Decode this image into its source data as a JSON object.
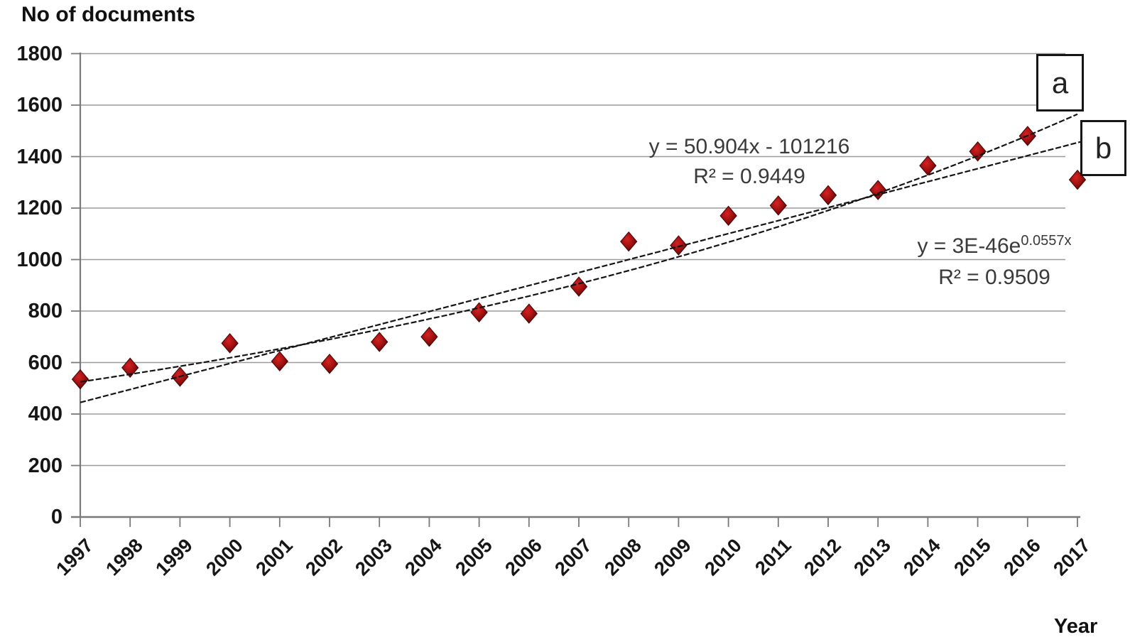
{
  "title": "No of documents",
  "xlabel": "Year",
  "chart_data": {
    "type": "scatter",
    "title": "No of documents",
    "xlabel": "Year",
    "ylabel": "No of documents",
    "x": [
      1997,
      1998,
      1999,
      2000,
      2001,
      2002,
      2003,
      2004,
      2005,
      2006,
      2007,
      2008,
      2009,
      2010,
      2011,
      2012,
      2013,
      2014,
      2015,
      2016,
      2017
    ],
    "values": [
      535,
      580,
      545,
      675,
      605,
      595,
      680,
      700,
      795,
      790,
      895,
      1070,
      1055,
      1170,
      1210,
      1250,
      1270,
      1365,
      1420,
      1480,
      1310
    ],
    "ylim": [
      0,
      1800
    ],
    "y_ticks": [
      0,
      200,
      400,
      600,
      800,
      1000,
      1200,
      1400,
      1600,
      1800
    ],
    "grid": "horizontal",
    "legend_position": "none",
    "marker": {
      "shape": "diamond",
      "color": "#a81212"
    },
    "trendlines": [
      {
        "label": "a",
        "type": "exponential",
        "equation_base": "y = 3E-46e",
        "equation_exponent": "0.0557x",
        "r2_display": "R² = 0.9509",
        "render": {
          "start_value": 525,
          "growth_per_year": 0.0546
        }
      },
      {
        "label": "b",
        "type": "linear",
        "equation_display": "y = 50.904x - 101216",
        "r2_display": "R² = 0.9449",
        "render": {
          "start_value": 445,
          "end_value": 1457
        }
      }
    ]
  }
}
